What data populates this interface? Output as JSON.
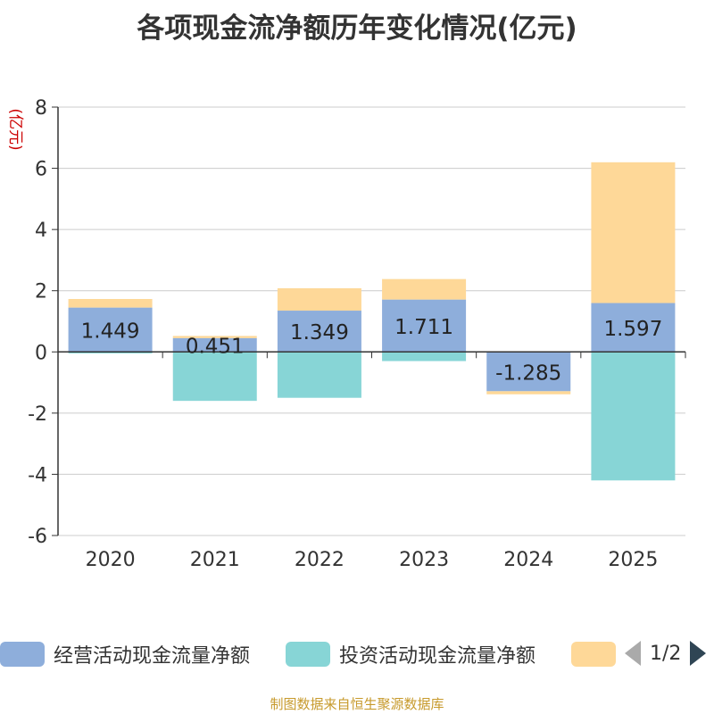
{
  "title": "各项现金流净额历年变化情况(亿元)",
  "source": "制图数据来自恒生聚源数据库",
  "pager": {
    "text": "1/2"
  },
  "chart_data": {
    "type": "bar",
    "stacked": true,
    "ylabel": "(亿元)",
    "ylim": [
      -6,
      8
    ],
    "yticks": [
      -6,
      -4,
      -2,
      0,
      2,
      4,
      6,
      8
    ],
    "categories": [
      "2020",
      "2021",
      "2022",
      "2023",
      "2024",
      "2025"
    ],
    "series": [
      {
        "name": "经营活动现金流量净额",
        "color": "#8eaedb",
        "values": [
          1.449,
          0.451,
          1.349,
          1.711,
          -1.285,
          1.597
        ],
        "labels": [
          "1.449",
          "0.451",
          "1.349",
          "1.711",
          "-1.285",
          "1.597"
        ]
      },
      {
        "name": "投资活动现金流量净额",
        "color": "#87d5d6",
        "values": [
          -0.05,
          -1.6,
          -1.5,
          -0.3,
          0,
          -4.2
        ]
      },
      {
        "name": "",
        "color": "#fed898",
        "values": [
          0.28,
          0.07,
          0.73,
          0.67,
          -0.1,
          4.6
        ]
      }
    ]
  }
}
